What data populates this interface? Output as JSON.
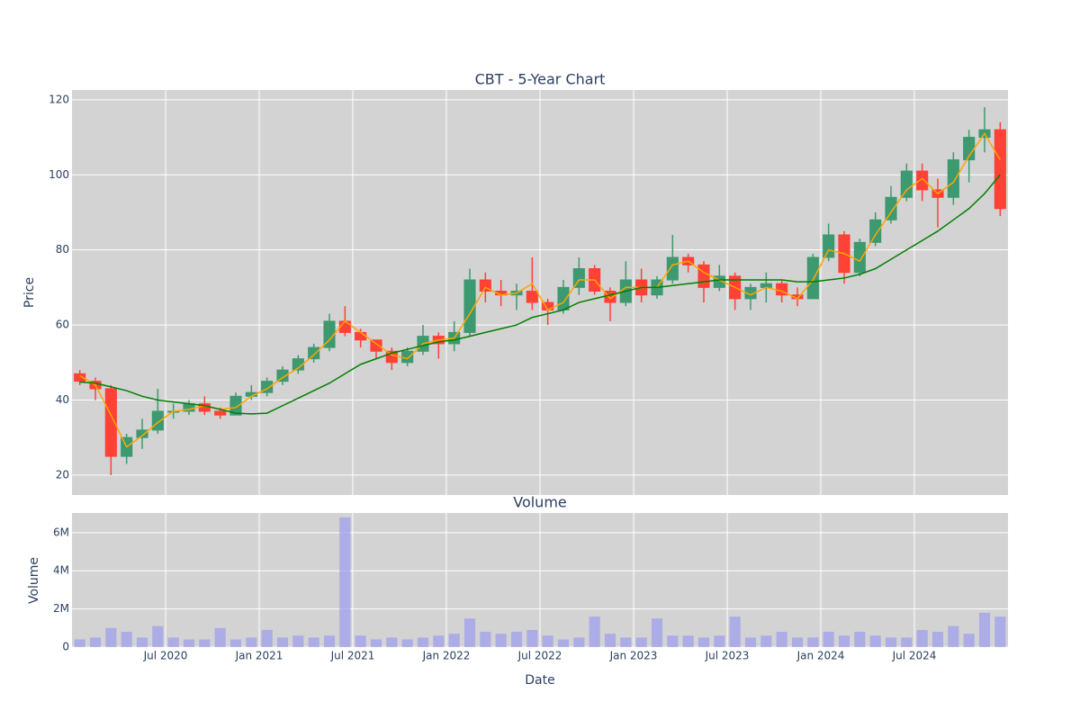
{
  "chart_data": {
    "type": "candlestick",
    "title": "CBT - 5-Year Chart",
    "subtitle": "Volume",
    "y_label": "Price",
    "y2_label": "Volume",
    "x_label": "Date",
    "grid": true,
    "x": [
      "2020-01",
      "2020-02",
      "2020-03",
      "2020-04",
      "2020-05",
      "2020-06",
      "2020-07",
      "2020-08",
      "2020-09",
      "2020-10",
      "2020-11",
      "2020-12",
      "2021-01",
      "2021-02",
      "2021-03",
      "2021-04",
      "2021-05",
      "2021-06",
      "2021-07",
      "2021-08",
      "2021-09",
      "2021-10",
      "2021-11",
      "2021-12",
      "2022-01",
      "2022-02",
      "2022-03",
      "2022-04",
      "2022-05",
      "2022-06",
      "2022-07",
      "2022-08",
      "2022-09",
      "2022-10",
      "2022-11",
      "2022-12",
      "2023-01",
      "2023-02",
      "2023-03",
      "2023-04",
      "2023-05",
      "2023-06",
      "2023-07",
      "2023-08",
      "2023-09",
      "2023-10",
      "2023-11",
      "2023-12",
      "2024-01",
      "2024-02",
      "2024-03",
      "2024-04",
      "2024-05",
      "2024-06",
      "2024-07",
      "2024-08",
      "2024-09",
      "2024-10",
      "2024-11",
      "2024-12"
    ],
    "xlim": [
      "2020-01",
      "2025-01"
    ],
    "xticks": [
      {
        "value": "2020-07",
        "label": "Jul 2020"
      },
      {
        "value": "2021-01",
        "label": "Jan 2021"
      },
      {
        "value": "2021-07",
        "label": "Jul 2021"
      },
      {
        "value": "2022-01",
        "label": "Jan 2022"
      },
      {
        "value": "2022-07",
        "label": "Jul 2022"
      },
      {
        "value": "2023-01",
        "label": "Jan 2023"
      },
      {
        "value": "2023-07",
        "label": "Jul 2023"
      },
      {
        "value": "2024-01",
        "label": "Jan 2024"
      },
      {
        "value": "2024-07",
        "label": "Jul 2024"
      }
    ],
    "ylim": [
      14.7,
      122.6
    ],
    "yticks": [
      20,
      40,
      60,
      80,
      100,
      120
    ],
    "candles": {
      "increasing_color": "#3d9970",
      "decreasing_color": "#ff4136",
      "open": [
        47,
        45,
        43,
        25,
        30,
        32,
        37,
        37,
        39,
        37,
        36,
        41,
        42,
        45,
        48,
        51,
        54,
        61,
        58,
        56,
        53,
        50,
        53,
        57,
        55,
        58,
        72,
        69,
        68,
        69,
        66,
        64,
        70,
        75,
        69,
        66,
        72,
        68,
        72,
        78,
        76,
        70,
        73,
        67,
        70,
        71,
        68,
        67,
        78,
        84,
        74,
        82,
        88,
        94,
        101,
        96,
        94,
        104,
        110,
        112
      ],
      "high": [
        48,
        46,
        44,
        31,
        35,
        43,
        39,
        40,
        41,
        38,
        42,
        44,
        46,
        49,
        52,
        55,
        63,
        65,
        59,
        56,
        54,
        54,
        60,
        58,
        61,
        75,
        74,
        72,
        71,
        78,
        67,
        72,
        78,
        76,
        70,
        77,
        75,
        73,
        84,
        79,
        77,
        76,
        74,
        71,
        74,
        72,
        70,
        79,
        87,
        85,
        83,
        90,
        97,
        103,
        103,
        99,
        106,
        112,
        118,
        114
      ],
      "low": [
        44,
        40,
        20,
        23,
        27,
        31,
        35,
        36,
        36,
        35,
        36,
        40,
        41,
        44,
        47,
        50,
        53,
        57,
        54,
        51,
        48,
        49,
        52,
        51,
        53,
        57,
        66,
        65,
        64,
        64,
        60,
        63,
        68,
        68,
        61,
        65,
        66,
        67,
        71,
        74,
        66,
        69,
        64,
        64,
        66,
        66,
        65,
        67,
        77,
        71,
        73,
        81,
        87,
        93,
        93,
        86,
        92,
        98,
        106,
        89
      ],
      "close": [
        45,
        43,
        25,
        30,
        32,
        37,
        37,
        39,
        37,
        36,
        41,
        42,
        45,
        48,
        51,
        54,
        61,
        58,
        56,
        53,
        50,
        53,
        57,
        55,
        58,
        72,
        69,
        68,
        69,
        66,
        64,
        70,
        75,
        69,
        66,
        72,
        68,
        72,
        78,
        76,
        70,
        73,
        67,
        70,
        71,
        68,
        67,
        78,
        84,
        74,
        82,
        88,
        94,
        101,
        96,
        94,
        104,
        110,
        112,
        91
      ]
    },
    "lines": [
      {
        "color": "#ffa500",
        "values": [
          46.5,
          44,
          36,
          27.5,
          30.5,
          34,
          37,
          37.5,
          38.5,
          37.5,
          38,
          41,
          43,
          46,
          48.5,
          52,
          56,
          61,
          58,
          55,
          52,
          51,
          55,
          56,
          56.5,
          63,
          70,
          68,
          68.5,
          71,
          64,
          66,
          72,
          72,
          67,
          70,
          70,
          70,
          76,
          77,
          74,
          72,
          70,
          68,
          70,
          69,
          67,
          72,
          80,
          79,
          77,
          84,
          90,
          96,
          99,
          95,
          98,
          105,
          111,
          104
        ]
      },
      {
        "color": "#008000",
        "values": [
          44.8,
          44.5,
          43.5,
          42.5,
          41,
          40,
          39.5,
          39,
          38.5,
          37.5,
          36.5,
          36.3,
          36.5,
          38.5,
          40.5,
          42.5,
          44.5,
          47,
          49.5,
          51,
          52.5,
          53.5,
          54.5,
          55.5,
          56,
          57,
          58,
          59,
          60,
          62,
          63,
          64,
          66,
          67,
          68,
          69,
          70,
          70,
          70.5,
          71,
          71.5,
          72,
          72,
          72,
          72,
          72,
          71.5,
          71.5,
          72,
          72.5,
          73.5,
          75,
          77.5,
          80,
          82.5,
          85,
          88,
          91,
          95,
          100
        ]
      }
    ],
    "volume": {
      "color": "#9b9bf0",
      "values": [
        400000,
        500000,
        1000000,
        800000,
        500000,
        1100000,
        500000,
        400000,
        400000,
        1000000,
        400000,
        500000,
        900000,
        500000,
        600000,
        500000,
        600000,
        6800000,
        600000,
        400000,
        500000,
        400000,
        500000,
        600000,
        700000,
        1500000,
        800000,
        700000,
        800000,
        900000,
        600000,
        400000,
        500000,
        1600000,
        700000,
        500000,
        500000,
        1500000,
        600000,
        600000,
        500000,
        600000,
        1600000,
        500000,
        600000,
        800000,
        500000,
        500000,
        800000,
        600000,
        800000,
        600000,
        500000,
        500000,
        900000,
        800000,
        1100000,
        700000,
        1800000,
        1600000
      ],
      "ylim": [
        0,
        7030000
      ],
      "yticks": [
        0,
        {
          "value": 2000000,
          "label": "2M"
        },
        {
          "value": 4000000,
          "label": "4M"
        },
        {
          "value": 6000000,
          "label": "6M"
        }
      ]
    }
  }
}
